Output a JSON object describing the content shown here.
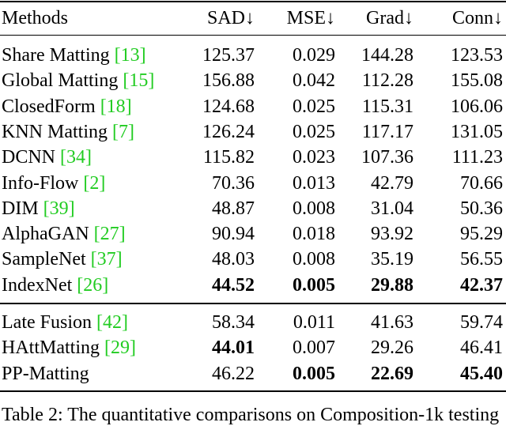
{
  "table": {
    "header": [
      "Methods",
      "SAD↓",
      "MSE↓",
      "Grad↓",
      "Conn↓"
    ],
    "groups": [
      [
        {
          "method": "Share Matting",
          "cite": "[13]",
          "values": [
            "125.37",
            "0.029",
            "144.28",
            "123.53"
          ],
          "bold": [
            false,
            false,
            false,
            false
          ]
        },
        {
          "method": "Global Matting",
          "cite": "[15]",
          "values": [
            "156.88",
            "0.042",
            "112.28",
            "155.08"
          ],
          "bold": [
            false,
            false,
            false,
            false
          ]
        },
        {
          "method": "ClosedForm",
          "cite": "[18]",
          "values": [
            "124.68",
            "0.025",
            "115.31",
            "106.06"
          ],
          "bold": [
            false,
            false,
            false,
            false
          ]
        },
        {
          "method": "KNN Matting",
          "cite": "[7]",
          "values": [
            "126.24",
            "0.025",
            "117.17",
            "131.05"
          ],
          "bold": [
            false,
            false,
            false,
            false
          ]
        },
        {
          "method": "DCNN",
          "cite": "[34]",
          "values": [
            "115.82",
            "0.023",
            "107.36",
            "111.23"
          ],
          "bold": [
            false,
            false,
            false,
            false
          ]
        },
        {
          "method": "Info-Flow",
          "cite": "[2]",
          "values": [
            "70.36",
            "0.013",
            "42.79",
            "70.66"
          ],
          "bold": [
            false,
            false,
            false,
            false
          ]
        },
        {
          "method": "DIM",
          "cite": "[39]",
          "values": [
            "48.87",
            "0.008",
            "31.04",
            "50.36"
          ],
          "bold": [
            false,
            false,
            false,
            false
          ]
        },
        {
          "method": "AlphaGAN",
          "cite": "[27]",
          "values": [
            "90.94",
            "0.018",
            "93.92",
            "95.29"
          ],
          "bold": [
            false,
            false,
            false,
            false
          ]
        },
        {
          "method": "SampleNet",
          "cite": "[37]",
          "values": [
            "48.03",
            "0.008",
            "35.19",
            "56.55"
          ],
          "bold": [
            false,
            false,
            false,
            false
          ]
        },
        {
          "method": "IndexNet",
          "cite": "[26]",
          "values": [
            "44.52",
            "0.005",
            "29.88",
            "42.37"
          ],
          "bold": [
            true,
            true,
            true,
            true
          ]
        }
      ],
      [
        {
          "method": "Late Fusion",
          "cite": "[42]",
          "values": [
            "58.34",
            "0.011",
            "41.63",
            "59.74"
          ],
          "bold": [
            false,
            false,
            false,
            false
          ]
        },
        {
          "method": "HAttMatting",
          "cite": "[29]",
          "values": [
            "44.01",
            "0.007",
            "29.26",
            "46.41"
          ],
          "bold": [
            true,
            false,
            false,
            false
          ]
        },
        {
          "method": "PP-Matting",
          "cite": null,
          "values": [
            "46.22",
            "0.005",
            "22.69",
            "45.40"
          ],
          "bold": [
            false,
            true,
            true,
            true
          ]
        }
      ]
    ],
    "caption": "Table 2: The quantitative comparisons on Composition-1k testing"
  }
}
